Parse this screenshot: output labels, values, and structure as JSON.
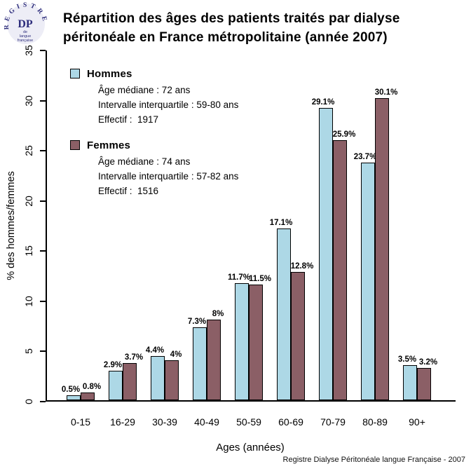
{
  "page": {
    "title_line1": "Répartition des âges des patients traités par dialyse",
    "title_line2": "péritonéale en France métropolitaine (année 2007)",
    "footer": "Registre Dialyse Péritonéale langue Française - 2007"
  },
  "logo": {
    "arc_text": "REGISTRE",
    "center_text": "DP",
    "sub_line1": "de",
    "sub_line2": "langue",
    "sub_line3": "française",
    "color": "#2E2E7C",
    "background": "#EDEDF6"
  },
  "legend": {
    "hommes": {
      "label": "Hommes",
      "median": "Âge médiane : 72 ans",
      "iqr": "Intervalle interquartile : 59-80 ans",
      "effectif": "Effectif :  1917",
      "color": "#ADD8E6"
    },
    "femmes": {
      "label": "Femmes",
      "median": "Âge médiane : 74 ans",
      "iqr": "Intervalle interquartile : 57-82 ans",
      "effectif": "Effectif :  1516",
      "color": "#8B5F66"
    }
  },
  "chart_data": {
    "type": "bar",
    "title": "Répartition des âges des patients traités par dialyse péritonéale en France métropolitaine (année 2007)",
    "categories": [
      "0-15",
      "16-29",
      "30-39",
      "40-49",
      "50-59",
      "60-69",
      "70-79",
      "80-89",
      "90+"
    ],
    "series": [
      {
        "name": "Hommes",
        "color": "#ADD8E6",
        "values": [
          0.5,
          2.9,
          4.4,
          7.3,
          11.7,
          17.1,
          29.1,
          23.7,
          3.5
        ],
        "labels": [
          "0.5%",
          "2.9%",
          "4.4%",
          "7.3%",
          "11.7%",
          "17.1%",
          "29.1%",
          "23.7%",
          "3.5%"
        ]
      },
      {
        "name": "Femmes",
        "color": "#8B5F66",
        "values": [
          0.8,
          3.7,
          4.0,
          8.0,
          11.5,
          12.8,
          25.9,
          30.1,
          3.2
        ],
        "labels": [
          "0.8%",
          "3.7%",
          "4%",
          "8%",
          "11.5%",
          "12.8%",
          "25.9%",
          "30.1%",
          "3.2%"
        ]
      }
    ],
    "xlabel": "Ages (années)",
    "ylabel": "% des hommes/femmes",
    "ylim": [
      0,
      35
    ],
    "yticks": [
      0,
      5,
      10,
      15,
      20,
      25,
      30,
      35
    ],
    "grid": false,
    "legend_position": "top-left"
  }
}
